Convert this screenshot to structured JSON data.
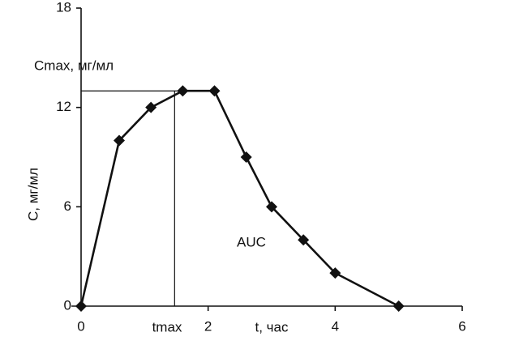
{
  "chart_data": {
    "type": "line",
    "x": [
      0,
      0.6,
      1.1,
      1.6,
      2.1,
      2.6,
      3.0,
      3.5,
      4.0,
      5.0
    ],
    "series": [
      {
        "color": "#111111",
        "values": [
          0,
          10,
          12,
          13,
          13,
          9,
          6,
          4,
          2,
          0
        ]
      }
    ],
    "xlim": [
      0,
      6
    ],
    "xticks": [
      0,
      2,
      4,
      6
    ],
    "ylim": [
      0,
      18
    ],
    "yticks": [
      0,
      6,
      12,
      18
    ],
    "y_label": "C, мг/мл",
    "x_label": "t, час",
    "cmax_label": "Cmax, мг/мл",
    "tmax_label": "tmax",
    "auc_label": "AUC"
  }
}
